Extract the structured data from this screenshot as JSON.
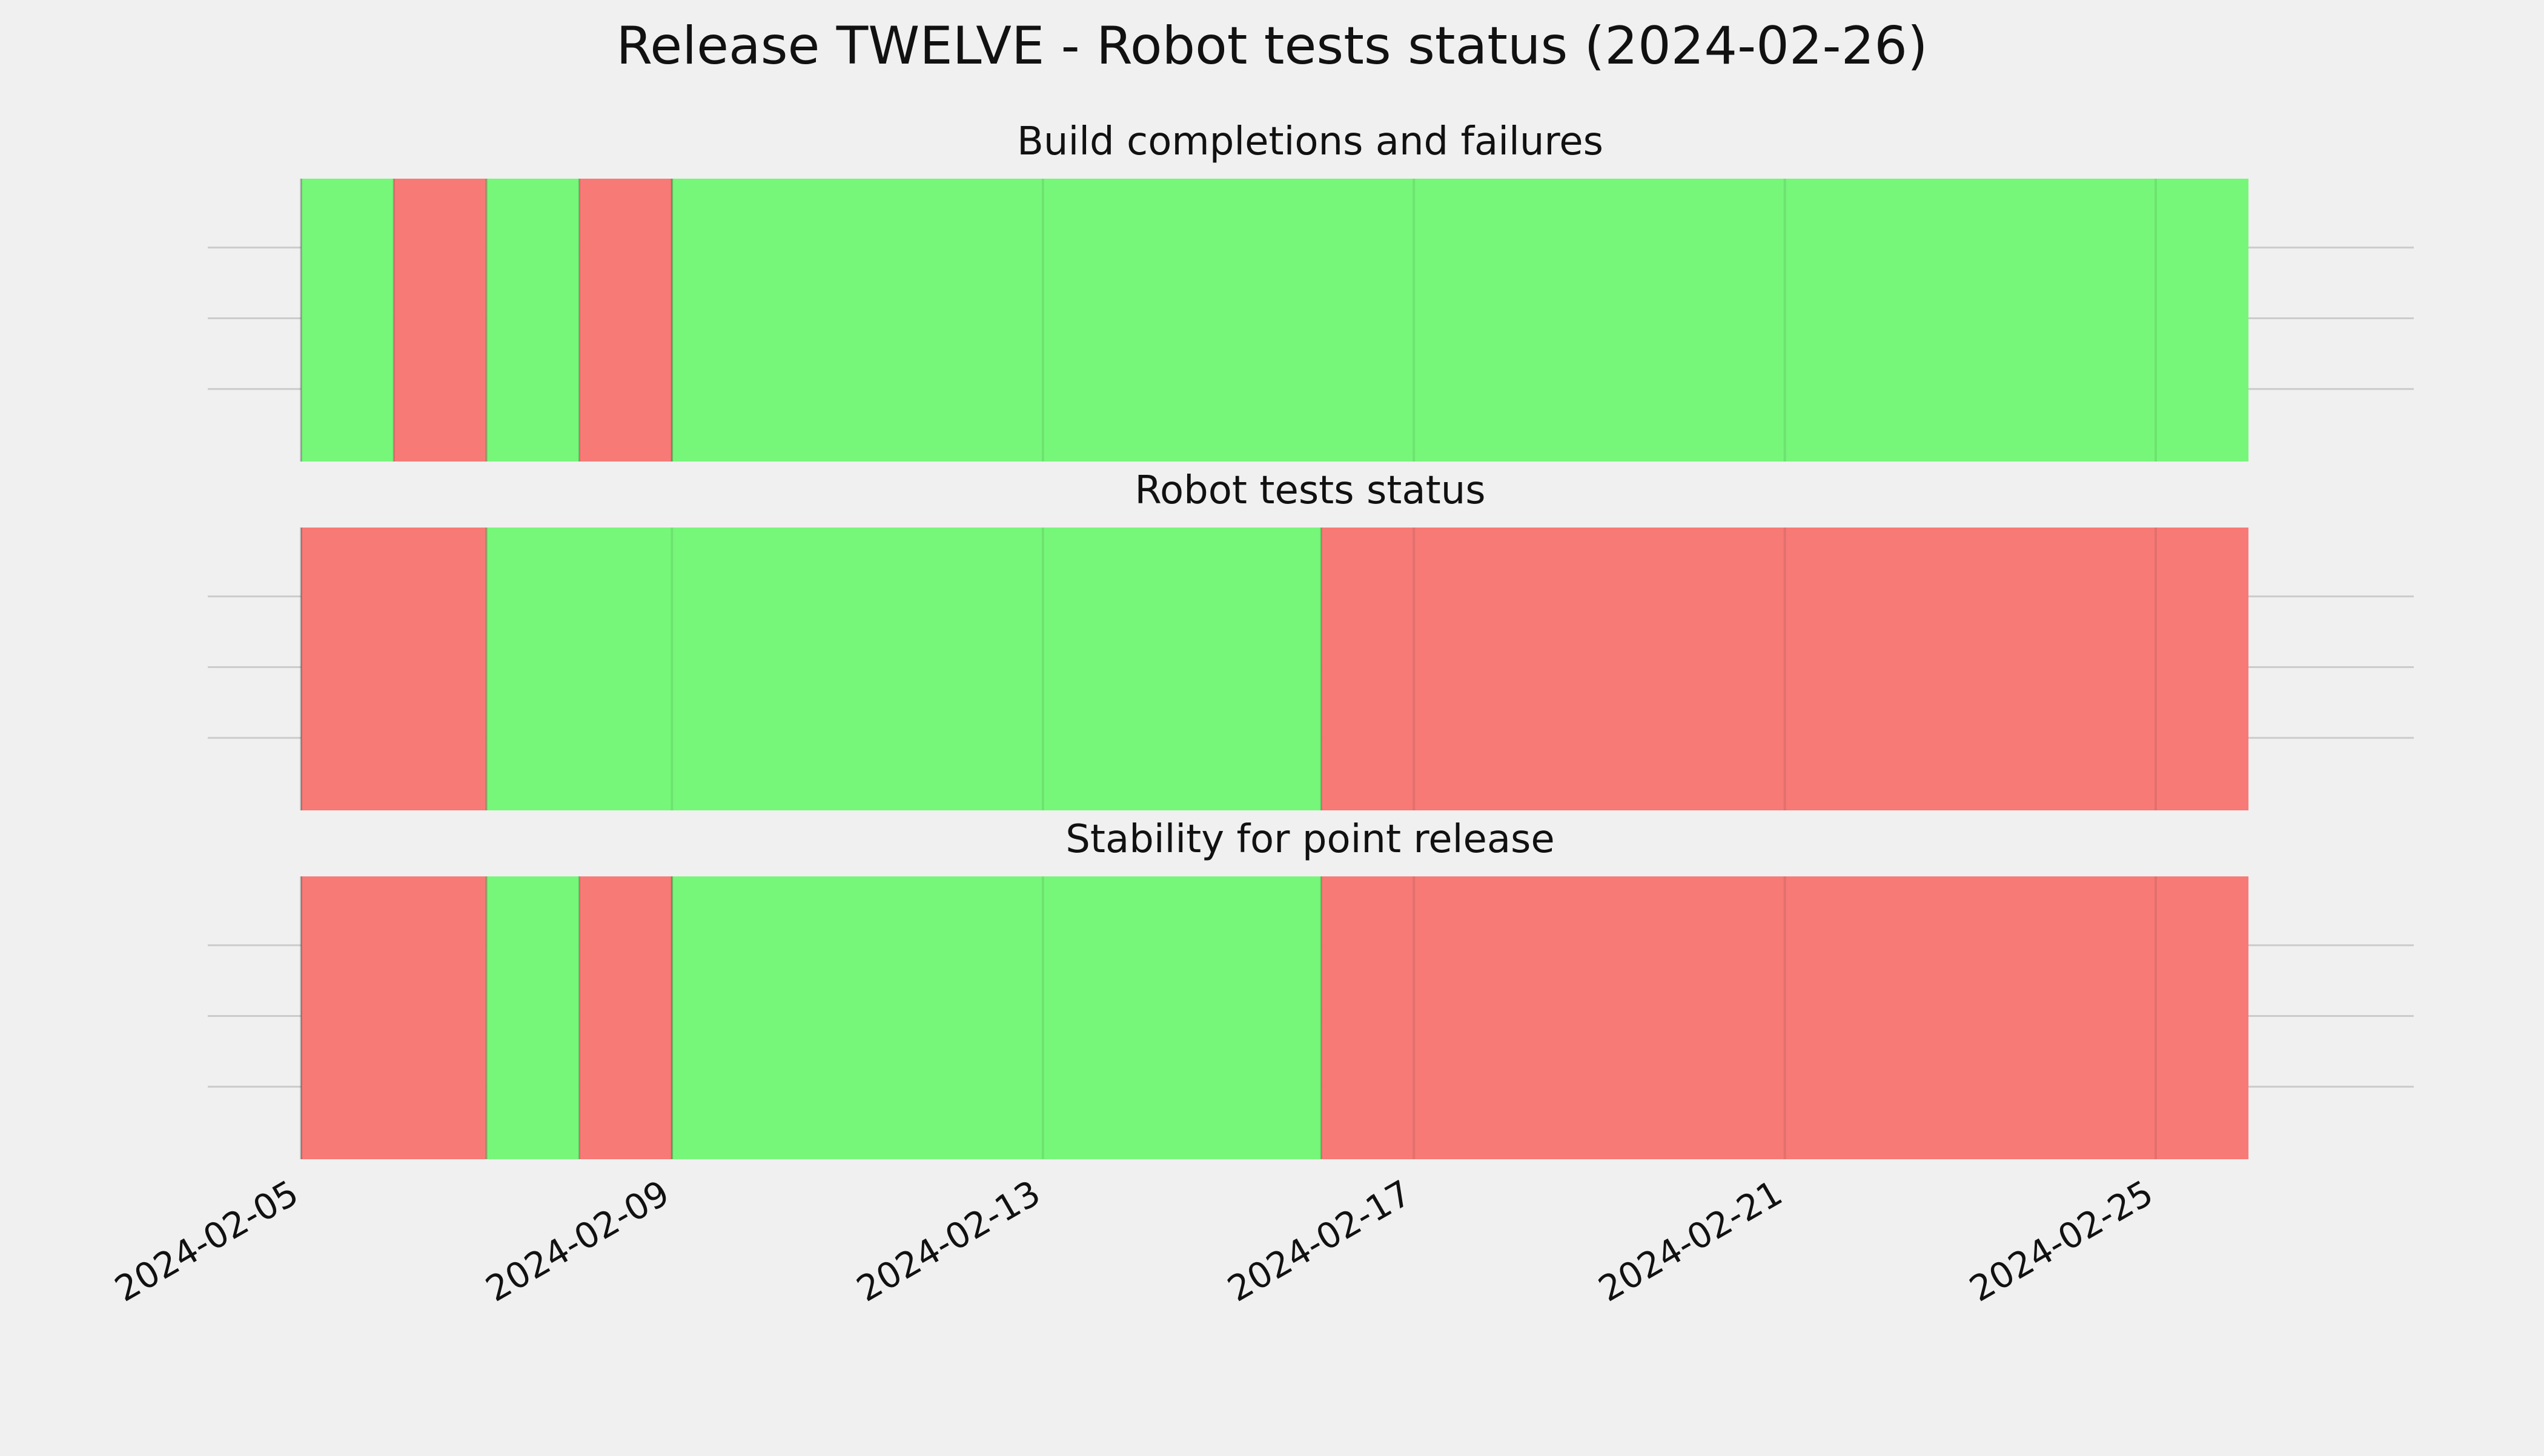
{
  "title": "Release TWELVE - Robot tests status (2024-02-26)",
  "colors": {
    "background": "#f0f0f0",
    "pass": "#77f77a",
    "fail": "#f77a77",
    "grid": "#cbcbcb"
  },
  "chart_data": {
    "type": "timeline",
    "title": "Release TWELVE - Robot tests status (2024-02-26)",
    "x_axis": {
      "type": "date",
      "range": [
        "2024-02-05",
        "2024-02-27"
      ],
      "ticks": [
        "2024-02-05",
        "2024-02-09",
        "2024-02-13",
        "2024-02-17",
        "2024-02-21",
        "2024-02-25"
      ]
    },
    "status_legend": {
      "pass": "green",
      "fail": "red"
    },
    "grid": true,
    "panels": [
      {
        "title": "Build completions and failures",
        "segments": [
          {
            "start": "2024-02-05",
            "end": "2024-02-06",
            "status": "pass"
          },
          {
            "start": "2024-02-06",
            "end": "2024-02-07",
            "status": "fail"
          },
          {
            "start": "2024-02-07",
            "end": "2024-02-08",
            "status": "pass"
          },
          {
            "start": "2024-02-08",
            "end": "2024-02-09",
            "status": "fail"
          },
          {
            "start": "2024-02-09",
            "end": "2024-02-26",
            "status": "pass"
          }
        ]
      },
      {
        "title": "Robot tests status",
        "segments": [
          {
            "start": "2024-02-05",
            "end": "2024-02-07",
            "status": "fail"
          },
          {
            "start": "2024-02-07",
            "end": "2024-02-16",
            "status": "pass"
          },
          {
            "start": "2024-02-16",
            "end": "2024-02-26",
            "status": "fail"
          }
        ]
      },
      {
        "title": "Stability for point release",
        "segments": [
          {
            "start": "2024-02-05",
            "end": "2024-02-07",
            "status": "fail"
          },
          {
            "start": "2024-02-07",
            "end": "2024-02-08",
            "status": "pass"
          },
          {
            "start": "2024-02-08",
            "end": "2024-02-09",
            "status": "fail"
          },
          {
            "start": "2024-02-09",
            "end": "2024-02-16",
            "status": "pass"
          },
          {
            "start": "2024-02-16",
            "end": "2024-02-26",
            "status": "fail"
          }
        ]
      }
    ]
  }
}
